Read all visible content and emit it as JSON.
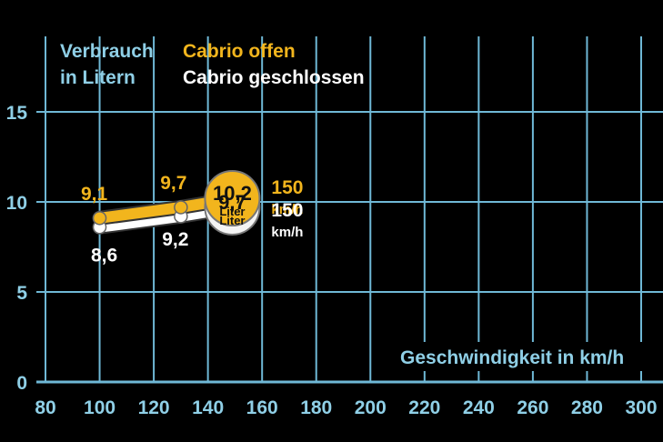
{
  "chart_data": {
    "type": "line",
    "title": "",
    "xlabel": "Geschwindigkeit in km/h",
    "ylabel_lines": [
      "Verbrauch",
      "in Litern"
    ],
    "xlim": [
      80,
      300
    ],
    "ylim": [
      0,
      15
    ],
    "x_ticks": [
      80,
      100,
      120,
      140,
      160,
      180,
      200,
      220,
      240,
      260,
      280,
      300
    ],
    "y_ticks": [
      0,
      5,
      10,
      15
    ],
    "grid": true,
    "legend_position": "top",
    "colors": {
      "open": "#f2b51d",
      "closed": "#ffffff",
      "grid": "#6fb8d6",
      "background": "#000000"
    },
    "series": [
      {
        "name": "Cabrio offen",
        "x": [
          100,
          130,
          150
        ],
        "y": [
          9.1,
          9.7,
          10.2
        ],
        "labels": [
          "9,1",
          "9,7",
          "10,2"
        ]
      },
      {
        "name": "Cabrio geschlossen",
        "x": [
          100,
          130,
          150
        ],
        "y": [
          8.6,
          9.2,
          9.7
        ],
        "labels": [
          "8,6",
          "9,2",
          "9,7"
        ]
      }
    ],
    "end_annotations": {
      "unit_liter": "Liter",
      "speed_value": "150",
      "speed_unit": "km/h"
    }
  }
}
